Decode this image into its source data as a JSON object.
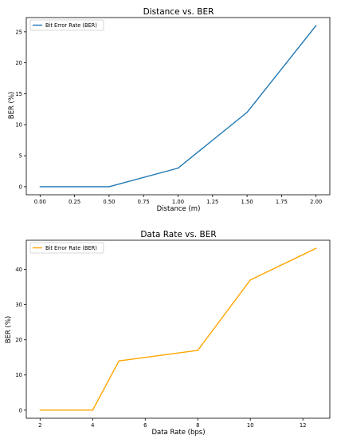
{
  "chart_data": [
    {
      "type": "line",
      "title": "Distance vs. BER",
      "xlabel": "Distance (m)",
      "ylabel": "BER (%)",
      "x": [
        0.0,
        0.5,
        1.0,
        1.5,
        2.0
      ],
      "series": [
        {
          "name": "Bit Error Rate (BER)",
          "values": [
            0,
            0,
            3,
            12,
            26
          ],
          "color": "#1f77b4"
        }
      ],
      "xlim": [
        -0.1,
        2.1
      ],
      "ylim": [
        -1.3,
        27.3
      ],
      "xticks": [
        0.0,
        0.25,
        0.5,
        0.75,
        1.0,
        1.25,
        1.5,
        1.75,
        2.0
      ],
      "xtick_labels": [
        "0.00",
        "0.25",
        "0.50",
        "0.75",
        "1.00",
        "1.25",
        "1.50",
        "1.75",
        "2.00"
      ],
      "yticks": [
        0,
        5,
        10,
        15,
        20,
        25
      ],
      "ytick_labels": [
        "0",
        "5",
        "10",
        "15",
        "20",
        "25"
      ],
      "legend_position": "top-left",
      "grid": false
    },
    {
      "type": "line",
      "title": "Data Rate vs. BER",
      "xlabel": "Data Rate (bps)",
      "ylabel": "BER (%)",
      "x": [
        2,
        4,
        5,
        8,
        10,
        12.5
      ],
      "series": [
        {
          "name": "Bit Error Rate (BER)",
          "values": [
            0,
            0,
            14,
            17,
            37,
            46
          ],
          "color": "#ffa500"
        }
      ],
      "xlim": [
        1.475,
        13.025
      ],
      "ylim": [
        -2.3,
        48.3
      ],
      "xticks": [
        2,
        4,
        6,
        8,
        10,
        12
      ],
      "xtick_labels": [
        "2",
        "4",
        "6",
        "8",
        "10",
        "12"
      ],
      "yticks": [
        0,
        10,
        20,
        30,
        40
      ],
      "ytick_labels": [
        "0",
        "10",
        "20",
        "30",
        "40"
      ],
      "legend_position": "top-left",
      "grid": false
    }
  ]
}
